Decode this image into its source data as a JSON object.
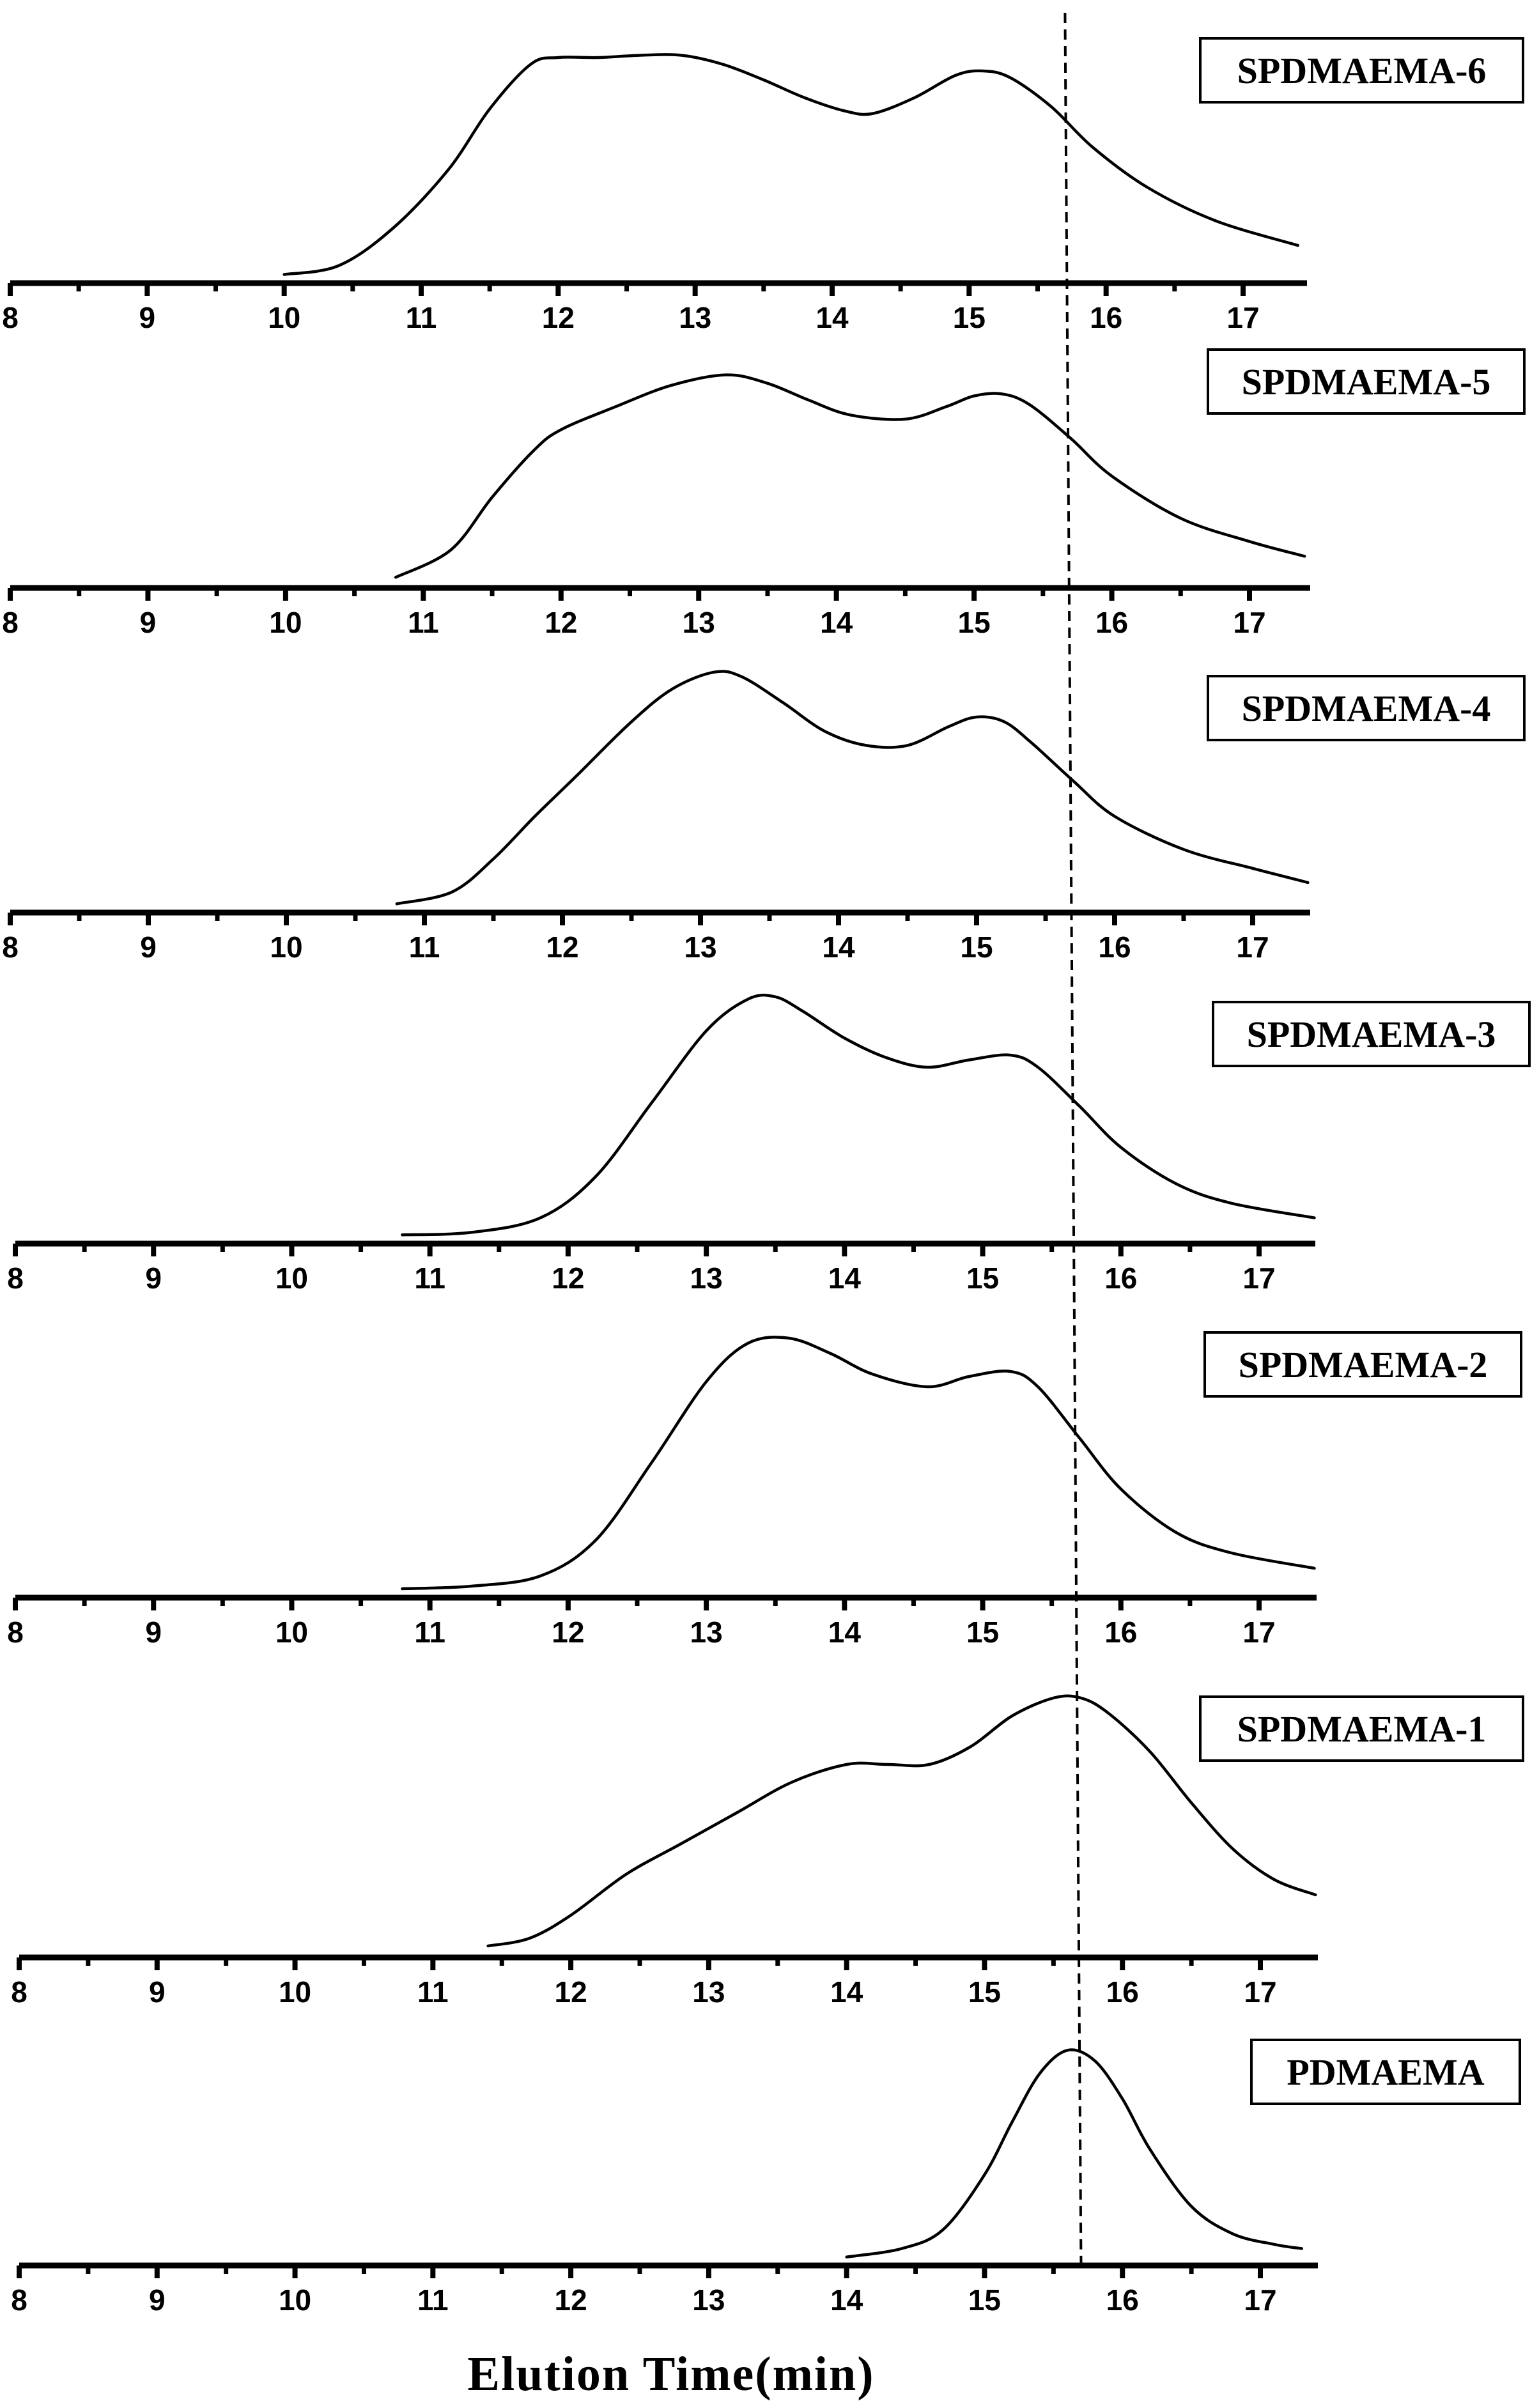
{
  "figure": {
    "xlabel": "Elution Time(min)",
    "reference_line_x": 15.7,
    "reference_line_style": "dashed",
    "line_color": "#000000",
    "background": "#ffffff"
  },
  "chart_data": [
    {
      "type": "line",
      "label": "SPDMAEMA-6",
      "xlim": [
        8,
        17.4
      ],
      "xticks": [
        8,
        9,
        10,
        11,
        12,
        13,
        14,
        15,
        16,
        17
      ],
      "series": [
        {
          "x": [
            10.0,
            10.4,
            10.8,
            11.2,
            11.5,
            11.8,
            12.0,
            12.3,
            12.6,
            12.9,
            13.2,
            13.5,
            13.8,
            14.1,
            14.3,
            14.6,
            14.9,
            15.1,
            15.3,
            15.6,
            15.9,
            16.3,
            16.8,
            17.4
          ],
          "y": [
            0.01,
            0.05,
            0.22,
            0.48,
            0.75,
            0.95,
            0.98,
            0.98,
            0.99,
            0.99,
            0.95,
            0.88,
            0.8,
            0.74,
            0.73,
            0.8,
            0.9,
            0.92,
            0.89,
            0.76,
            0.58,
            0.4,
            0.25,
            0.14
          ]
        }
      ]
    },
    {
      "type": "line",
      "label": "SPDMAEMA-5",
      "xlim": [
        8,
        17.4
      ],
      "xticks": [
        8,
        9,
        10,
        11,
        12,
        13,
        14,
        15,
        16,
        17
      ],
      "series": [
        {
          "x": [
            10.8,
            11.2,
            11.5,
            11.8,
            12.0,
            12.4,
            12.8,
            13.2,
            13.5,
            13.8,
            14.1,
            14.5,
            14.8,
            15.0,
            15.2,
            15.4,
            15.7,
            16.0,
            16.5,
            17.0,
            17.4
          ],
          "y": [
            0.02,
            0.15,
            0.4,
            0.62,
            0.72,
            0.83,
            0.93,
            0.98,
            0.94,
            0.86,
            0.79,
            0.77,
            0.83,
            0.88,
            0.89,
            0.84,
            0.68,
            0.5,
            0.3,
            0.19,
            0.12
          ]
        }
      ]
    },
    {
      "type": "line",
      "label": "SPDMAEMA-4",
      "xlim": [
        8,
        17.4
      ],
      "xticks": [
        8,
        9,
        10,
        11,
        12,
        13,
        14,
        15,
        16,
        17
      ],
      "series": [
        {
          "x": [
            10.8,
            11.2,
            11.5,
            11.8,
            12.1,
            12.5,
            12.8,
            13.1,
            13.3,
            13.6,
            13.9,
            14.2,
            14.5,
            14.8,
            15.0,
            15.2,
            15.4,
            15.7,
            16.0,
            16.5,
            17.0,
            17.4
          ],
          "y": [
            0.01,
            0.06,
            0.2,
            0.38,
            0.55,
            0.78,
            0.92,
            0.99,
            0.97,
            0.86,
            0.74,
            0.68,
            0.68,
            0.76,
            0.8,
            0.78,
            0.69,
            0.53,
            0.38,
            0.24,
            0.16,
            0.1
          ]
        }
      ]
    },
    {
      "type": "line",
      "label": "SPDMAEMA-3",
      "xlim": [
        8,
        17.4
      ],
      "xticks": [
        8,
        9,
        10,
        11,
        12,
        13,
        14,
        15,
        16,
        17
      ],
      "series": [
        {
          "x": [
            10.8,
            11.3,
            11.8,
            12.2,
            12.6,
            13.0,
            13.3,
            13.5,
            13.7,
            14.0,
            14.3,
            14.6,
            14.9,
            15.2,
            15.4,
            15.7,
            16.0,
            16.4,
            16.8,
            17.4
          ],
          "y": [
            0.01,
            0.02,
            0.08,
            0.25,
            0.55,
            0.85,
            0.98,
            0.99,
            0.93,
            0.82,
            0.74,
            0.7,
            0.73,
            0.75,
            0.7,
            0.54,
            0.37,
            0.22,
            0.14,
            0.08
          ]
        }
      ]
    },
    {
      "type": "line",
      "label": "SPDMAEMA-2",
      "xlim": [
        8,
        17.4
      ],
      "xticks": [
        8,
        9,
        10,
        11,
        12,
        13,
        14,
        15,
        16,
        17
      ],
      "series": [
        {
          "x": [
            10.8,
            11.3,
            11.8,
            12.2,
            12.6,
            13.0,
            13.3,
            13.6,
            13.9,
            14.2,
            14.6,
            14.9,
            15.2,
            15.4,
            15.7,
            16.0,
            16.4,
            16.8,
            17.4
          ],
          "y": [
            0.01,
            0.02,
            0.06,
            0.2,
            0.5,
            0.82,
            0.97,
            0.99,
            0.93,
            0.85,
            0.8,
            0.84,
            0.86,
            0.8,
            0.6,
            0.4,
            0.23,
            0.15,
            0.09
          ]
        }
      ]
    },
    {
      "type": "line",
      "label": "SPDMAEMA-1",
      "xlim": [
        8,
        17.4
      ],
      "xticks": [
        8,
        9,
        10,
        11,
        12,
        13,
        14,
        15,
        16,
        17
      ],
      "series": [
        {
          "x": [
            11.4,
            11.7,
            12.0,
            12.4,
            12.8,
            13.2,
            13.6,
            14.0,
            14.3,
            14.6,
            14.9,
            15.2,
            15.5,
            15.7,
            15.9,
            16.2,
            16.5,
            16.8,
            17.1,
            17.4
          ],
          "y": [
            0.02,
            0.05,
            0.14,
            0.3,
            0.42,
            0.54,
            0.66,
            0.73,
            0.73,
            0.73,
            0.8,
            0.92,
            0.99,
            0.99,
            0.93,
            0.78,
            0.58,
            0.4,
            0.28,
            0.22
          ]
        }
      ]
    },
    {
      "type": "line",
      "label": "PDMAEMA",
      "xlim": [
        8,
        17.4
      ],
      "xticks": [
        8,
        9,
        10,
        11,
        12,
        13,
        14,
        15,
        16,
        17
      ],
      "series": [
        {
          "x": [
            14.0,
            14.4,
            14.7,
            15.0,
            15.2,
            15.4,
            15.6,
            15.8,
            16.0,
            16.2,
            16.5,
            16.8,
            17.1,
            17.3
          ],
          "y": [
            0.01,
            0.05,
            0.14,
            0.4,
            0.65,
            0.88,
            0.99,
            0.94,
            0.76,
            0.52,
            0.25,
            0.12,
            0.07,
            0.05
          ]
        }
      ]
    }
  ]
}
